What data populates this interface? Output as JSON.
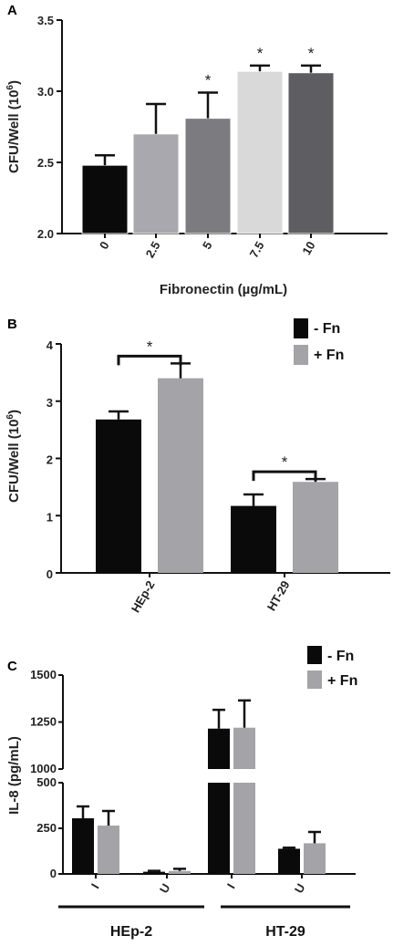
{
  "chart_data": [
    {
      "panel": "A",
      "type": "bar",
      "xlabel": "Fibronectin (µg/mL)",
      "ylabel": "CFU/Well (10⁶)",
      "ylim": [
        2.0,
        3.5
      ],
      "yticks": [
        "2.0",
        "2.5",
        "3.0",
        "3.5"
      ],
      "categories": [
        "0",
        "2.5",
        "5",
        "7.5",
        "10"
      ],
      "values": [
        2.48,
        2.7,
        2.81,
        3.14,
        3.13
      ],
      "errors": [
        0.07,
        0.21,
        0.18,
        0.04,
        0.05
      ],
      "significance": [
        "",
        "",
        "*",
        "*",
        "*"
      ],
      "colors": [
        "#0a0a0a",
        "#a8a8ae",
        "#7c7c80",
        "#d9d9d9",
        "#5e5e62"
      ]
    },
    {
      "panel": "B",
      "type": "bar",
      "ylabel": "CFU/Well (10⁶)",
      "ylim": [
        0,
        4
      ],
      "yticks": [
        "0",
        "1",
        "2",
        "3",
        "4"
      ],
      "categories": [
        "HEp-2",
        "HT-29"
      ],
      "series": [
        {
          "name": "-  Fn",
          "values": [
            2.68,
            1.17
          ],
          "errors": [
            0.14,
            0.2
          ],
          "color": "#0a0a0a"
        },
        {
          "name": "+ Fn",
          "values": [
            3.4,
            1.59
          ],
          "errors": [
            0.26,
            0.05
          ],
          "color": "#a3a3a8"
        }
      ],
      "significance_label": "*",
      "legend": [
        "-  Fn",
        "+ Fn"
      ],
      "legend_position": "top-right"
    },
    {
      "panel": "C",
      "type": "bar",
      "ylabel": "IL-8 (pg/mL)",
      "broken_axis": true,
      "ylim_lower": [
        0,
        500
      ],
      "ylim_upper": [
        1000,
        1500
      ],
      "yticks_lower": [
        "0",
        "250",
        "500"
      ],
      "yticks_upper": [
        "1000",
        "1250",
        "1500"
      ],
      "categories": [
        "I",
        "U",
        "I",
        "U"
      ],
      "groups": [
        "HEp-2",
        "HT-29"
      ],
      "series": [
        {
          "name": "-  Fn",
          "values": [
            305,
            12,
            1215,
            138
          ],
          "errors": [
            65,
            5,
            100,
            6
          ],
          "color": "#0a0a0a"
        },
        {
          "name": "+ Fn",
          "values": [
            265,
            16,
            1220,
            168
          ],
          "errors": [
            80,
            12,
            145,
            62
          ],
          "color": "#a3a3a8"
        }
      ],
      "legend": [
        "-  Fn",
        "+ Fn"
      ],
      "legend_position": "top-right"
    }
  ]
}
